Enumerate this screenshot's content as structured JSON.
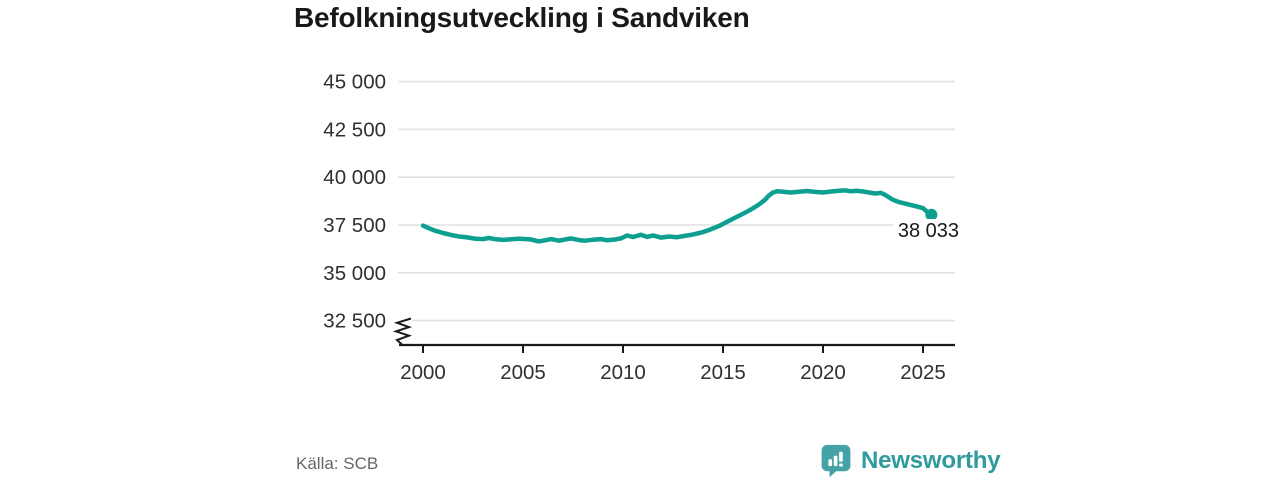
{
  "title": "Befolkningsutveckling i Sandviken",
  "source": "Källa: SCB",
  "branding": {
    "logo_text": "Newsworthy",
    "logo_icon": "bar-chart-speech-bubble-icon",
    "icon_color": "#45A2A6",
    "wordmark_color": "#2F9B9D"
  },
  "chart_data": {
    "type": "line",
    "title": "Befolkningsutveckling i Sandviken",
    "xlabel": "",
    "ylabel": "",
    "x_ticks": [
      "2000",
      "2005",
      "2010",
      "2015",
      "2020",
      "2025"
    ],
    "x_tick_values": [
      2000,
      2005,
      2010,
      2015,
      2020,
      2025
    ],
    "y_ticks": [
      "45 000",
      "42 500",
      "40 000",
      "37 500",
      "35 000",
      "32 500"
    ],
    "y_tick_values": [
      45000,
      42500,
      40000,
      37500,
      35000,
      32500
    ],
    "xlim": [
      1998.75,
      2026.6
    ],
    "ylim_visible": [
      32500,
      45000
    ],
    "axis_break_at_bottom": true,
    "grid": "horizontal",
    "legend": "none",
    "line_color": "#0DA091",
    "grid_color": "#E1E1E1",
    "axis_color": "#1A1A1A",
    "series": [
      {
        "name": "Befolkning",
        "points": [
          [
            2000.0,
            37470
          ],
          [
            2000.3,
            37330
          ],
          [
            2000.6,
            37200
          ],
          [
            2001.0,
            37080
          ],
          [
            2001.4,
            36980
          ],
          [
            2001.8,
            36900
          ],
          [
            2002.2,
            36850
          ],
          [
            2002.6,
            36790
          ],
          [
            2003.0,
            36760
          ],
          [
            2003.3,
            36820
          ],
          [
            2003.6,
            36760
          ],
          [
            2004.0,
            36720
          ],
          [
            2004.4,
            36750
          ],
          [
            2004.8,
            36780
          ],
          [
            2005.1,
            36770
          ],
          [
            2005.4,
            36740
          ],
          [
            2005.8,
            36640
          ],
          [
            2006.1,
            36700
          ],
          [
            2006.4,
            36760
          ],
          [
            2006.8,
            36680
          ],
          [
            2007.1,
            36740
          ],
          [
            2007.4,
            36800
          ],
          [
            2007.8,
            36710
          ],
          [
            2008.1,
            36680
          ],
          [
            2008.5,
            36730
          ],
          [
            2008.9,
            36760
          ],
          [
            2009.2,
            36700
          ],
          [
            2009.6,
            36740
          ],
          [
            2009.9,
            36800
          ],
          [
            2010.2,
            36950
          ],
          [
            2010.5,
            36870
          ],
          [
            2010.9,
            36990
          ],
          [
            2011.2,
            36880
          ],
          [
            2011.5,
            36950
          ],
          [
            2011.9,
            36840
          ],
          [
            2012.3,
            36900
          ],
          [
            2012.7,
            36860
          ],
          [
            2013.0,
            36920
          ],
          [
            2013.4,
            36980
          ],
          [
            2013.7,
            37050
          ],
          [
            2014.0,
            37130
          ],
          [
            2014.4,
            37280
          ],
          [
            2014.8,
            37450
          ],
          [
            2015.2,
            37660
          ],
          [
            2015.6,
            37880
          ],
          [
            2016.0,
            38090
          ],
          [
            2016.4,
            38310
          ],
          [
            2016.8,
            38570
          ],
          [
            2017.1,
            38820
          ],
          [
            2017.3,
            39050
          ],
          [
            2017.5,
            39200
          ],
          [
            2017.7,
            39260
          ],
          [
            2018.0,
            39240
          ],
          [
            2018.4,
            39200
          ],
          [
            2018.8,
            39240
          ],
          [
            2019.2,
            39280
          ],
          [
            2019.6,
            39230
          ],
          [
            2020.0,
            39200
          ],
          [
            2020.4,
            39250
          ],
          [
            2020.8,
            39290
          ],
          [
            2021.1,
            39310
          ],
          [
            2021.4,
            39260
          ],
          [
            2021.7,
            39290
          ],
          [
            2022.0,
            39250
          ],
          [
            2022.3,
            39200
          ],
          [
            2022.6,
            39150
          ],
          [
            2022.9,
            39180
          ],
          [
            2023.1,
            39080
          ],
          [
            2023.3,
            38950
          ],
          [
            2023.5,
            38820
          ],
          [
            2023.8,
            38700
          ],
          [
            2024.1,
            38620
          ],
          [
            2024.4,
            38540
          ],
          [
            2024.7,
            38470
          ],
          [
            2025.0,
            38380
          ],
          [
            2025.15,
            38250
          ],
          [
            2025.28,
            38080
          ],
          [
            2025.35,
            37990
          ],
          [
            2025.42,
            38033
          ]
        ]
      }
    ],
    "last_point": {
      "x": 2025.42,
      "value": 38033,
      "label": "38 033"
    }
  }
}
